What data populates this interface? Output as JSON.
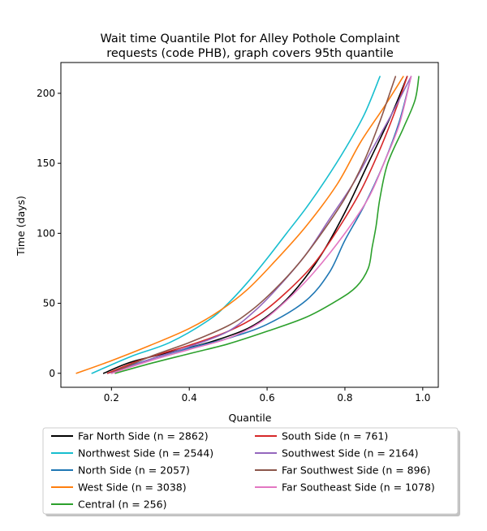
{
  "chart_data": {
    "type": "line",
    "title": "Wait time Quantile Plot for Alley Pothole Complaint requests (code PHB), graph covers 95th quantile",
    "title_lines": [
      "Wait time Quantile Plot for Alley Pothole Complaint",
      "requests (code PHB), graph covers 95th quantile"
    ],
    "xlabel": "Quantile",
    "ylabel": "Time (days)",
    "xlim": [
      0.07,
      1.04
    ],
    "ylim": [
      -10,
      222
    ],
    "xticks": [
      0.2,
      0.4,
      0.6,
      0.8,
      1.0
    ],
    "xtick_labels": [
      "0.2",
      "0.4",
      "0.6",
      "0.8",
      "1.0"
    ],
    "yticks": [
      0,
      50,
      100,
      150,
      200
    ],
    "ytick_labels": [
      "0",
      "50",
      "100",
      "150",
      "200"
    ],
    "grid": false,
    "legend_placement": "below plot, two columns",
    "series": [
      {
        "name": "Far North Side (n = 2862)",
        "color": "#000000",
        "points": [
          [
            0.18,
            0
          ],
          [
            0.25,
            8
          ],
          [
            0.35,
            15
          ],
          [
            0.45,
            22
          ],
          [
            0.55,
            32
          ],
          [
            0.62,
            45
          ],
          [
            0.68,
            62
          ],
          [
            0.74,
            85
          ],
          [
            0.8,
            115
          ],
          [
            0.86,
            150
          ],
          [
            0.92,
            185
          ],
          [
            0.96,
            212
          ]
        ]
      },
      {
        "name": "Northwest Side (n = 2544)",
        "color": "#17becf",
        "points": [
          [
            0.15,
            0
          ],
          [
            0.25,
            12
          ],
          [
            0.35,
            22
          ],
          [
            0.45,
            38
          ],
          [
            0.5,
            50
          ],
          [
            0.55,
            65
          ],
          [
            0.6,
            82
          ],
          [
            0.65,
            100
          ],
          [
            0.7,
            118
          ],
          [
            0.75,
            138
          ],
          [
            0.8,
            160
          ],
          [
            0.85,
            185
          ],
          [
            0.89,
            212
          ]
        ]
      },
      {
        "name": "North Side (n = 2057)",
        "color": "#1f77b4",
        "points": [
          [
            0.19,
            0
          ],
          [
            0.3,
            10
          ],
          [
            0.4,
            18
          ],
          [
            0.5,
            25
          ],
          [
            0.6,
            35
          ],
          [
            0.7,
            52
          ],
          [
            0.76,
            72
          ],
          [
            0.8,
            95
          ],
          [
            0.85,
            120
          ],
          [
            0.9,
            150
          ],
          [
            0.94,
            180
          ],
          [
            0.97,
            212
          ]
        ]
      },
      {
        "name": "West Side (n = 3038)",
        "color": "#ff7f0e",
        "points": [
          [
            0.11,
            0
          ],
          [
            0.2,
            9
          ],
          [
            0.3,
            20
          ],
          [
            0.4,
            32
          ],
          [
            0.48,
            45
          ],
          [
            0.55,
            60
          ],
          [
            0.62,
            80
          ],
          [
            0.7,
            105
          ],
          [
            0.78,
            135
          ],
          [
            0.84,
            165
          ],
          [
            0.9,
            190
          ],
          [
            0.95,
            212
          ]
        ]
      },
      {
        "name": "Central (n = 256)",
        "color": "#2ca02c",
        "points": [
          [
            0.21,
            0
          ],
          [
            0.3,
            7
          ],
          [
            0.4,
            14
          ],
          [
            0.5,
            21
          ],
          [
            0.6,
            30
          ],
          [
            0.7,
            40
          ],
          [
            0.78,
            52
          ],
          [
            0.83,
            62
          ],
          [
            0.86,
            75
          ],
          [
            0.87,
            90
          ],
          [
            0.88,
            105
          ],
          [
            0.89,
            125
          ],
          [
            0.91,
            150
          ],
          [
            0.95,
            175
          ],
          [
            0.98,
            195
          ],
          [
            0.99,
            212
          ]
        ]
      },
      {
        "name": "South Side (n = 761)",
        "color": "#d62728",
        "points": [
          [
            0.19,
            0
          ],
          [
            0.28,
            10
          ],
          [
            0.4,
            20
          ],
          [
            0.5,
            30
          ],
          [
            0.58,
            42
          ],
          [
            0.65,
            58
          ],
          [
            0.72,
            78
          ],
          [
            0.78,
            102
          ],
          [
            0.84,
            130
          ],
          [
            0.89,
            160
          ],
          [
            0.93,
            188
          ],
          [
            0.96,
            212
          ]
        ]
      },
      {
        "name": "Southwest Side (n = 2164)",
        "color": "#9467bd",
        "points": [
          [
            0.2,
            0
          ],
          [
            0.3,
            10
          ],
          [
            0.4,
            19
          ],
          [
            0.5,
            30
          ],
          [
            0.57,
            45
          ],
          [
            0.63,
            62
          ],
          [
            0.7,
            85
          ],
          [
            0.76,
            110
          ],
          [
            0.82,
            135
          ],
          [
            0.87,
            160
          ],
          [
            0.92,
            185
          ],
          [
            0.97,
            212
          ]
        ]
      },
      {
        "name": "Far Southwest Side (n = 896)",
        "color": "#8c564b",
        "points": [
          [
            0.2,
            0
          ],
          [
            0.3,
            12
          ],
          [
            0.4,
            22
          ],
          [
            0.5,
            34
          ],
          [
            0.56,
            45
          ],
          [
            0.62,
            60
          ],
          [
            0.68,
            78
          ],
          [
            0.74,
            100
          ],
          [
            0.8,
            125
          ],
          [
            0.85,
            152
          ],
          [
            0.89,
            180
          ],
          [
            0.93,
            212
          ]
        ]
      },
      {
        "name": "Far Southeast Side (n = 1078)",
        "color": "#e377c2",
        "points": [
          [
            0.2,
            0
          ],
          [
            0.3,
            9
          ],
          [
            0.4,
            17
          ],
          [
            0.5,
            25
          ],
          [
            0.58,
            36
          ],
          [
            0.65,
            52
          ],
          [
            0.72,
            72
          ],
          [
            0.8,
            100
          ],
          [
            0.86,
            125
          ],
          [
            0.9,
            150
          ],
          [
            0.94,
            178
          ],
          [
            0.97,
            212
          ]
        ]
      }
    ]
  }
}
